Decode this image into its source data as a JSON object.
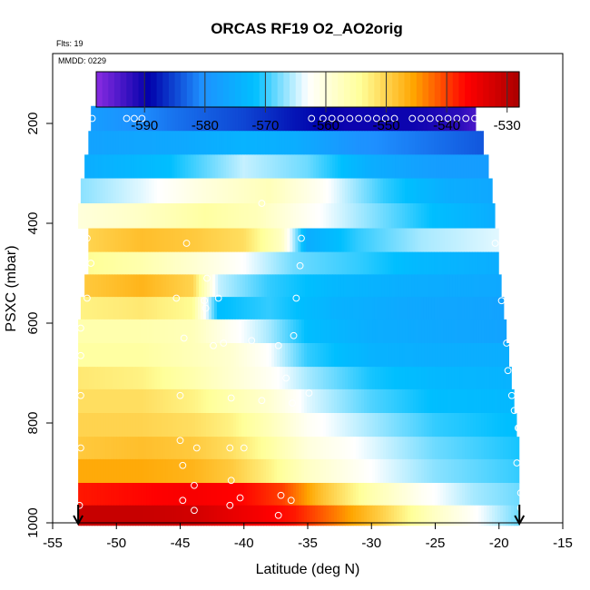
{
  "chart_data": {
    "type": "heatmap",
    "title": "ORCAS RF19 O2_AO2orig",
    "annotations": [
      "Flts: 19",
      "MMDD: 0229"
    ],
    "xlabel": "Latitude (deg N)",
    "ylabel": "PSXC (mbar)",
    "xlim": [
      -55,
      -15
    ],
    "ylim": [
      1000,
      60
    ],
    "x_ticks": [
      -55,
      -50,
      -45,
      -40,
      -35,
      -30,
      -25,
      -20,
      -15
    ],
    "y_ticks": [
      200,
      400,
      600,
      800,
      1000
    ],
    "colorbar": {
      "range": [
        -598,
        -528
      ],
      "ticks": [
        -590,
        -580,
        -570,
        -560,
        -550,
        -540,
        -530
      ],
      "colors": [
        "#8a2be2",
        "#0000aa",
        "#1e90ff",
        "#00bfff",
        "#ffffff",
        "#ffff99",
        "#ffa500",
        "#ff0000",
        "#aa0000"
      ]
    },
    "grid": false,
    "bands": [
      {
        "p": 190,
        "lat_min": -52.0,
        "lat_max": -21.8,
        "profile": [
          [
            -52,
            -578
          ],
          [
            -46,
            -582
          ],
          [
            -40,
            -585
          ],
          [
            -36,
            -588
          ],
          [
            -32,
            -590
          ],
          [
            -27,
            -590
          ],
          [
            -23,
            -592
          ],
          [
            -21.8,
            -594
          ]
        ]
      },
      {
        "p": 240,
        "lat_min": -52.2,
        "lat_max": -21.2,
        "profile": [
          [
            -52,
            -577
          ],
          [
            -45,
            -576
          ],
          [
            -40,
            -574
          ],
          [
            -36,
            -575
          ],
          [
            -31,
            -580
          ],
          [
            -26,
            -582
          ],
          [
            -21.2,
            -584
          ]
        ]
      },
      {
        "p": 285,
        "lat_min": -52.5,
        "lat_max": -20.8,
        "profile": [
          [
            -52.5,
            -575
          ],
          [
            -46,
            -572
          ],
          [
            -40,
            -565
          ],
          [
            -35,
            -568
          ],
          [
            -30,
            -575
          ],
          [
            -25,
            -578
          ],
          [
            -20.8,
            -578
          ]
        ]
      },
      {
        "p": 335,
        "lat_min": -52.8,
        "lat_max": -20.5,
        "profile": [
          [
            -52.8,
            -567
          ],
          [
            -48,
            -564
          ],
          [
            -43,
            -560
          ],
          [
            -38,
            -557
          ],
          [
            -34,
            -562
          ],
          [
            -29,
            -570
          ],
          [
            -24,
            -575
          ],
          [
            -20.5,
            -576
          ]
        ]
      },
      {
        "p": 385,
        "lat_min": -53.0,
        "lat_max": -20.3,
        "profile": [
          [
            -53,
            -560
          ],
          [
            -48,
            -558
          ],
          [
            -43,
            -555
          ],
          [
            -39,
            -557
          ],
          [
            -35,
            -562
          ],
          [
            -30,
            -567
          ],
          [
            -25,
            -572
          ],
          [
            -20.3,
            -575
          ]
        ]
      },
      {
        "p": 435,
        "lat_min": -52.2,
        "lat_max": -20.0,
        "profile": [
          [
            -52.2,
            -550
          ],
          [
            -48,
            -548
          ],
          [
            -44,
            -549
          ],
          [
            -40,
            -551
          ],
          [
            -37,
            -558
          ],
          [
            -35,
            -575
          ],
          [
            -31,
            -570
          ],
          [
            -26,
            -566
          ],
          [
            -20,
            -564
          ]
        ]
      },
      {
        "p": 480,
        "lat_min": -52.2,
        "lat_max": -20.0,
        "profile": [
          [
            -52.2,
            -554
          ],
          [
            -48,
            -556
          ],
          [
            -44,
            -559
          ],
          [
            -40,
            -563
          ],
          [
            -36,
            -568
          ],
          [
            -31,
            -570
          ],
          [
            -26,
            -573
          ],
          [
            -20,
            -575
          ]
        ]
      },
      {
        "p": 525,
        "lat_min": -52.5,
        "lat_max": -19.8,
        "profile": [
          [
            -52.5,
            -549
          ],
          [
            -48,
            -547
          ],
          [
            -44,
            -550
          ],
          [
            -42,
            -565
          ],
          [
            -38,
            -570
          ],
          [
            -33,
            -573
          ],
          [
            -27,
            -575
          ],
          [
            -19.8,
            -576
          ]
        ]
      },
      {
        "p": 570,
        "lat_min": -52.8,
        "lat_max": -19.6,
        "profile": [
          [
            -52.8,
            -553
          ],
          [
            -48,
            -552
          ],
          [
            -44,
            -554
          ],
          [
            -42,
            -572
          ],
          [
            -38,
            -570
          ],
          [
            -33,
            -574
          ],
          [
            -27,
            -576
          ],
          [
            -19.6,
            -577
          ]
        ]
      },
      {
        "p": 615,
        "lat_min": -53.0,
        "lat_max": -19.4,
        "profile": [
          [
            -53,
            -556
          ],
          [
            -48,
            -556
          ],
          [
            -44,
            -557
          ],
          [
            -41,
            -562
          ],
          [
            -38,
            -566
          ],
          [
            -35,
            -572
          ],
          [
            -30,
            -575
          ],
          [
            -25,
            -576
          ],
          [
            -19.4,
            -577
          ]
        ]
      },
      {
        "p": 665,
        "lat_min": -53.0,
        "lat_max": -19.2,
        "profile": [
          [
            -53,
            -555
          ],
          [
            -48,
            -555
          ],
          [
            -44,
            -557
          ],
          [
            -41,
            -559
          ],
          [
            -38,
            -563
          ],
          [
            -35,
            -570
          ],
          [
            -30,
            -574
          ],
          [
            -25,
            -575
          ],
          [
            -19.2,
            -575
          ]
        ]
      },
      {
        "p": 710,
        "lat_min": -53.0,
        "lat_max": -19.0,
        "profile": [
          [
            -53,
            -552
          ],
          [
            -48,
            -553
          ],
          [
            -44,
            -556
          ],
          [
            -41,
            -559
          ],
          [
            -38,
            -562
          ],
          [
            -35,
            -566
          ],
          [
            -30,
            -571
          ],
          [
            -25,
            -573
          ],
          [
            -19,
            -574
          ]
        ]
      },
      {
        "p": 755,
        "lat_min": -53.0,
        "lat_max": -18.8,
        "profile": [
          [
            -53,
            -551
          ],
          [
            -48,
            -551
          ],
          [
            -44,
            -553
          ],
          [
            -41,
            -556
          ],
          [
            -38,
            -559
          ],
          [
            -35,
            -564
          ],
          [
            -30,
            -569
          ],
          [
            -25,
            -572
          ],
          [
            -18.8,
            -573
          ]
        ]
      },
      {
        "p": 805,
        "lat_min": -53.0,
        "lat_max": -18.6,
        "profile": [
          [
            -53,
            -550
          ],
          [
            -48,
            -550
          ],
          [
            -44,
            -551
          ],
          [
            -41,
            -553
          ],
          [
            -38,
            -557
          ],
          [
            -35,
            -562
          ],
          [
            -30,
            -566
          ],
          [
            -25,
            -570
          ],
          [
            -18.6,
            -572
          ]
        ]
      },
      {
        "p": 850,
        "lat_min": -53.0,
        "lat_max": -18.4,
        "profile": [
          [
            -53,
            -549
          ],
          [
            -48,
            -548
          ],
          [
            -44,
            -549
          ],
          [
            -41,
            -551
          ],
          [
            -38,
            -555
          ],
          [
            -35,
            -560
          ],
          [
            -30,
            -564
          ],
          [
            -25,
            -568
          ],
          [
            -18.4,
            -571
          ]
        ]
      },
      {
        "p": 895,
        "lat_min": -53.0,
        "lat_max": -18.4,
        "profile": [
          [
            -53,
            -546
          ],
          [
            -48,
            -546
          ],
          [
            -44,
            -547
          ],
          [
            -41,
            -549
          ],
          [
            -38,
            -553
          ],
          [
            -35,
            -558
          ],
          [
            -30,
            -563
          ],
          [
            -25,
            -567
          ],
          [
            -18.4,
            -570
          ]
        ]
      },
      {
        "p": 945,
        "lat_min": -53.0,
        "lat_max": -18.4,
        "profile": [
          [
            -53,
            -538
          ],
          [
            -48,
            -537
          ],
          [
            -44,
            -536
          ],
          [
            -40,
            -537
          ],
          [
            -37,
            -540
          ],
          [
            -34,
            -548
          ],
          [
            -30,
            -556
          ],
          [
            -26,
            -562
          ],
          [
            -22,
            -566
          ],
          [
            -18.4,
            -568
          ]
        ]
      },
      {
        "p": 985,
        "lat_min": -53.0,
        "lat_max": -18.4,
        "profile": [
          [
            -53,
            -531
          ],
          [
            -48,
            -531
          ],
          [
            -44,
            -532
          ],
          [
            -40,
            -535
          ],
          [
            -36,
            -538
          ],
          [
            -33,
            -543
          ],
          [
            -29,
            -550
          ],
          [
            -25,
            -558
          ],
          [
            -21,
            -564
          ],
          [
            -18.4,
            -568
          ]
        ]
      }
    ],
    "points": [
      [
        -51.9,
        190
      ],
      [
        -49.2,
        190
      ],
      [
        -48.6,
        190
      ],
      [
        -48.0,
        190
      ],
      [
        -34.7,
        190
      ],
      [
        -33.8,
        190
      ],
      [
        -33.1,
        190
      ],
      [
        -32.4,
        190
      ],
      [
        -31.7,
        190
      ],
      [
        -31.0,
        190
      ],
      [
        -30.3,
        190
      ],
      [
        -29.6,
        190
      ],
      [
        -28.9,
        190
      ],
      [
        -28.2,
        190
      ],
      [
        -26.8,
        190
      ],
      [
        -26.1,
        190
      ],
      [
        -25.4,
        190
      ],
      [
        -24.7,
        190
      ],
      [
        -24.0,
        190
      ],
      [
        -23.3,
        190
      ],
      [
        -22.6,
        190
      ],
      [
        -21.9,
        190
      ],
      [
        -38.6,
        360
      ],
      [
        -52.3,
        430
      ],
      [
        -44.5,
        440
      ],
      [
        -35.5,
        430
      ],
      [
        -20.3,
        440
      ],
      [
        -52.0,
        480
      ],
      [
        -35.6,
        485
      ],
      [
        -42.9,
        510
      ],
      [
        -52.3,
        550
      ],
      [
        -45.3,
        550
      ],
      [
        -43.1,
        555
      ],
      [
        -42.0,
        550
      ],
      [
        -43.0,
        570
      ],
      [
        -35.9,
        550
      ],
      [
        -19.8,
        555
      ],
      [
        -52.8,
        610
      ],
      [
        -44.7,
        630
      ],
      [
        -42.4,
        645
      ],
      [
        -41.6,
        640
      ],
      [
        -39.4,
        635
      ],
      [
        -37.3,
        645
      ],
      [
        -36.1,
        625
      ],
      [
        -19.4,
        640
      ],
      [
        -52.8,
        665
      ],
      [
        -52.8,
        745
      ],
      [
        -45.0,
        745
      ],
      [
        -41.0,
        750
      ],
      [
        -34.9,
        740
      ],
      [
        -36.7,
        710
      ],
      [
        -19.3,
        695
      ],
      [
        -36.2,
        760
      ],
      [
        -38.6,
        755
      ],
      [
        -19.0,
        745
      ],
      [
        -18.8,
        775
      ],
      [
        -18.5,
        810
      ],
      [
        -18.4,
        810
      ],
      [
        -45.0,
        835
      ],
      [
        -43.7,
        850
      ],
      [
        -41.1,
        850
      ],
      [
        -40.0,
        850
      ],
      [
        -52.8,
        850
      ],
      [
        -18.6,
        880
      ],
      [
        -44.8,
        885
      ],
      [
        -41.0,
        915
      ],
      [
        -43.9,
        925
      ],
      [
        -44.8,
        955
      ],
      [
        -43.9,
        975
      ],
      [
        -41.1,
        965
      ],
      [
        -40.3,
        950
      ],
      [
        -37.1,
        945
      ],
      [
        -36.3,
        955
      ],
      [
        -37.3,
        985
      ],
      [
        -52.9,
        965
      ],
      [
        -18.3,
        940
      ],
      [
        -18.3,
        970
      ]
    ],
    "flight_markers_lat": [
      -53.0,
      -18.4
    ]
  }
}
